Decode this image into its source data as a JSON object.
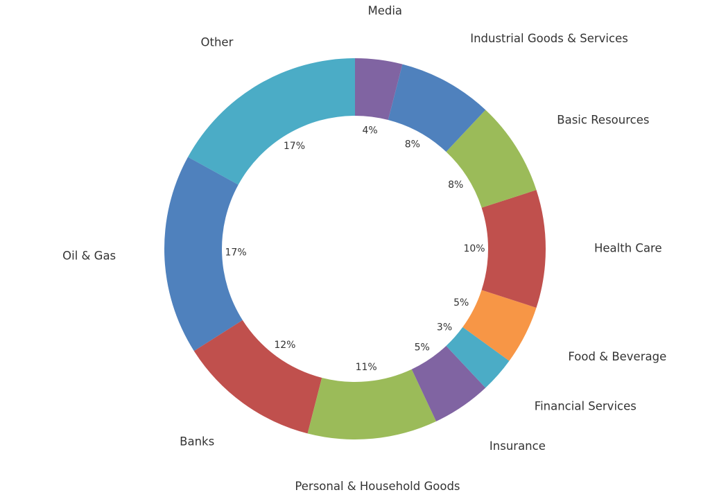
{
  "chart_data": {
    "type": "pie",
    "variant": "donut",
    "start_angle_deg": 90,
    "direction": "counterclockwise",
    "legend": "none",
    "slices": [
      {
        "label": "Other",
        "value": 17,
        "pct_label": "17%",
        "color": "#4BACC6"
      },
      {
        "label": "Oil & Gas",
        "value": 17,
        "pct_label": "17%",
        "color": "#4F81BD"
      },
      {
        "label": "Banks",
        "value": 12,
        "pct_label": "12%",
        "color": "#C0504D"
      },
      {
        "label": "Personal & Household Goods",
        "value": 11,
        "pct_label": "11%",
        "color": "#9BBB59"
      },
      {
        "label": "Insurance",
        "value": 5,
        "pct_label": "5%",
        "color": "#8064A2"
      },
      {
        "label": "Financial Services",
        "value": 3,
        "pct_label": "3%",
        "color": "#4BACC6"
      },
      {
        "label": "Food & Beverage",
        "value": 5,
        "pct_label": "5%",
        "color": "#F79646"
      },
      {
        "label": "Health Care",
        "value": 10,
        "pct_label": "10%",
        "color": "#C0504D"
      },
      {
        "label": "Basic Resources",
        "value": 8,
        "pct_label": "8%",
        "color": "#9BBB59"
      },
      {
        "label": "Industrial Goods & Services",
        "value": 8,
        "pct_label": "8%",
        "color": "#4F81BD"
      },
      {
        "label": "Media",
        "value": 4,
        "pct_label": "4%",
        "color": "#8064A2"
      }
    ]
  }
}
